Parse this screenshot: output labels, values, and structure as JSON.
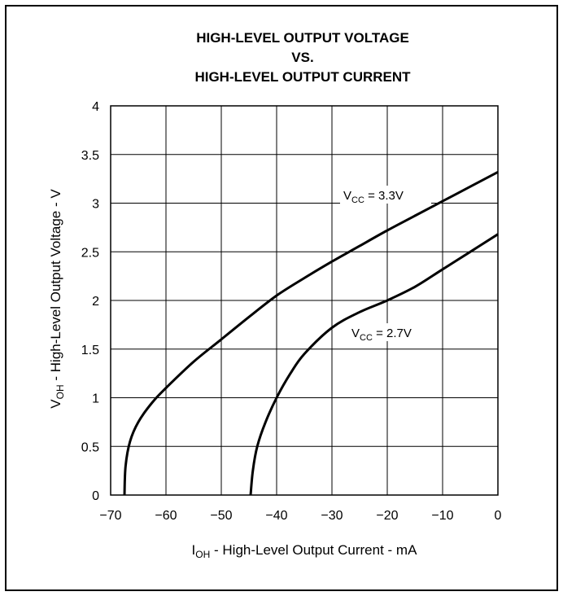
{
  "chart_data": {
    "type": "line",
    "title": [
      "HIGH-LEVEL OUTPUT VOLTAGE",
      "VS.",
      "HIGH-LEVEL OUTPUT CURRENT"
    ],
    "xlabel": {
      "main": "I",
      "sub": "OH",
      "rest": " - High-Level Output Current - mA"
    },
    "ylabel": {
      "main": "V",
      "sub": "OH",
      "rest": " - High-Level Output Voltage - V"
    },
    "xlim": [
      -70,
      0
    ],
    "ylim": [
      0,
      4
    ],
    "xticks": [
      -70,
      -60,
      -50,
      -40,
      -30,
      -20,
      -10,
      0
    ],
    "xtick_labels": [
      "−70",
      "−60",
      "−50",
      "−40",
      "−30",
      "−20",
      "−10",
      "0"
    ],
    "yticks": [
      0,
      0.5,
      1,
      1.5,
      2,
      2.5,
      3,
      3.5,
      4
    ],
    "ytick_labels": [
      "0",
      "0.5",
      "1",
      "1.5",
      "2",
      "2.5",
      "3",
      "3.5",
      "4"
    ],
    "grid": true,
    "series": [
      {
        "name": "VCC = 3.3V",
        "label": {
          "main": "V",
          "sub": "CC",
          "rest": " = 3.3V"
        },
        "points": [
          [
            -67.5,
            0
          ],
          [
            -67.3,
            0.3
          ],
          [
            -66.5,
            0.55
          ],
          [
            -65,
            0.75
          ],
          [
            -62.5,
            0.95
          ],
          [
            -60,
            1.1
          ],
          [
            -55,
            1.37
          ],
          [
            -50,
            1.6
          ],
          [
            -45,
            1.83
          ],
          [
            -40,
            2.05
          ],
          [
            -35,
            2.23
          ],
          [
            -30,
            2.4
          ],
          [
            -25,
            2.56
          ],
          [
            -20,
            2.72
          ],
          [
            -15,
            2.87
          ],
          [
            -10,
            3.02
          ],
          [
            -5,
            3.17
          ],
          [
            0,
            3.32
          ]
        ]
      },
      {
        "name": "VCC = 2.7V",
        "label": {
          "main": "V",
          "sub": "CC",
          "rest": " = 2.7V"
        },
        "points": [
          [
            -44.7,
            0
          ],
          [
            -44.3,
            0.25
          ],
          [
            -43.5,
            0.5
          ],
          [
            -42,
            0.75
          ],
          [
            -40,
            1.0
          ],
          [
            -37.5,
            1.25
          ],
          [
            -35,
            1.45
          ],
          [
            -30,
            1.72
          ],
          [
            -25,
            1.88
          ],
          [
            -20,
            2.0
          ],
          [
            -15,
            2.14
          ],
          [
            -10,
            2.32
          ],
          [
            -5,
            2.5
          ],
          [
            0,
            2.68
          ]
        ]
      }
    ]
  }
}
